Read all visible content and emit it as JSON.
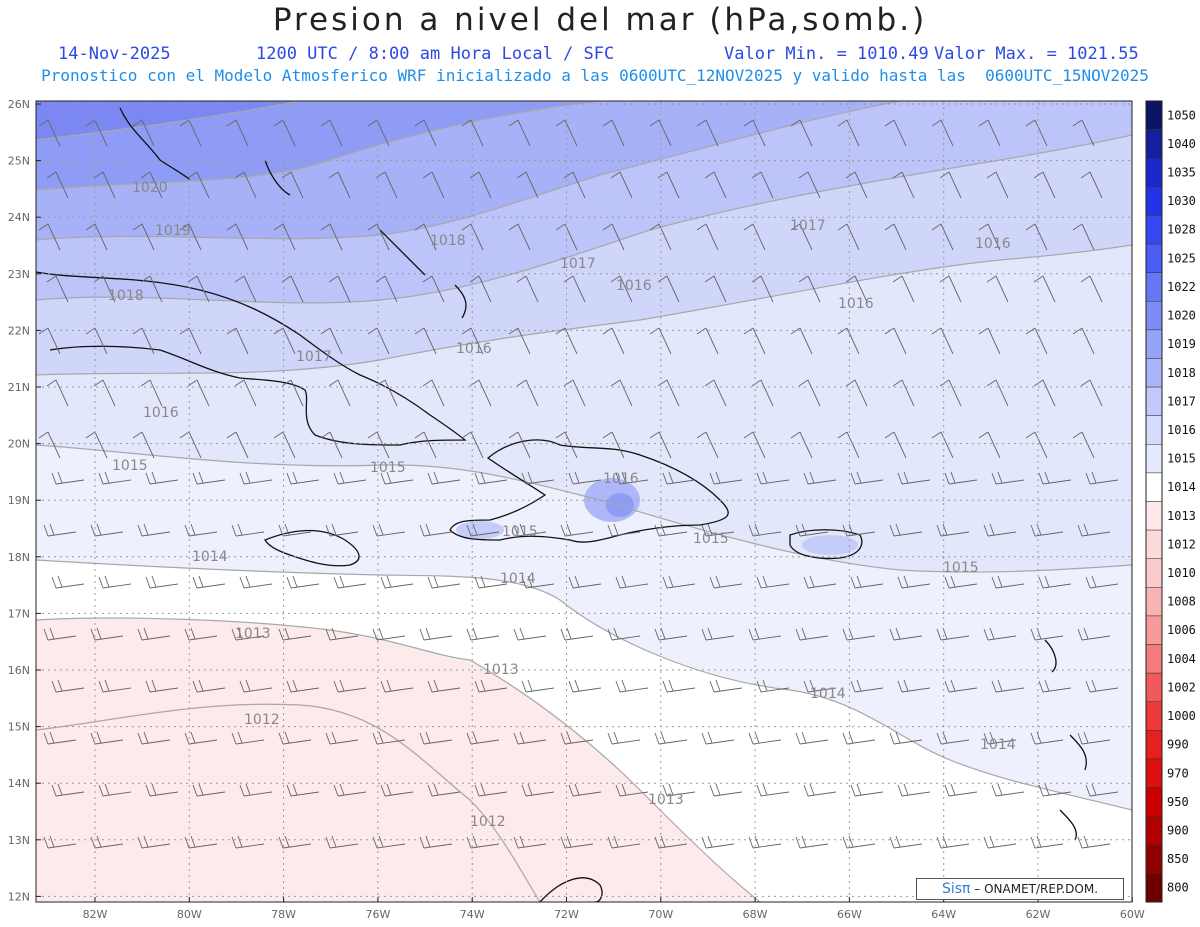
{
  "header": {
    "title": "Presion a nivel del mar (hPa,somb.)",
    "date": "14-Nov-2025",
    "time_info": "1200 UTC / 8:00 am Hora Local / SFC",
    "valor_min": "Valor Min. = 1010.49",
    "valor_max": "Valor Max. = 1021.55",
    "forecast_info": "Pronostico con el Modelo Atmosferico WRF inicializado a las 0600UTC_12NOV2025 y valido hasta las  0600UTC_15NOV2025"
  },
  "axes": {
    "lat_labels": [
      "26N",
      "25N",
      "24N",
      "23N",
      "22N",
      "21N",
      "20N",
      "19N",
      "18N",
      "17N",
      "16N",
      "15N",
      "14N",
      "13N",
      "12N"
    ],
    "lon_labels": [
      "82W",
      "80W",
      "78W",
      "76W",
      "74W",
      "72W",
      "70W",
      "68W",
      "66W",
      "64W",
      "62W",
      "60W"
    ]
  },
  "colorbar": {
    "levels": [
      "1050",
      "1040",
      "1035",
      "1030",
      "1028",
      "1025",
      "1022",
      "1020",
      "1019",
      "1018",
      "1017",
      "1016",
      "1015",
      "1014",
      "1013",
      "1012",
      "1010",
      "1008",
      "1006",
      "1004",
      "1002",
      "1000",
      "990",
      "970",
      "950",
      "900",
      "850",
      "800"
    ],
    "colors": [
      "#0d1466",
      "#141f9e",
      "#1a27cc",
      "#2133e6",
      "#3447f0",
      "#4a5cf2",
      "#6577f4",
      "#7d8df5",
      "#95a3f7",
      "#aab6f9",
      "#c0c9fa",
      "#d4dbfb",
      "#e6eafd",
      "#ffffff",
      "#fde9e9",
      "#fcdada",
      "#fbcaca",
      "#f9b3b3",
      "#f69999",
      "#f37b7b",
      "#f05a5a",
      "#ec3a3a",
      "#e61f1f",
      "#df0f0f",
      "#cc0000",
      "#b00000",
      "#900000",
      "#6e0000"
    ]
  },
  "isobar_labels": [
    "1020",
    "1019",
    "1018",
    "1018",
    "1017",
    "1017",
    "1016",
    "1016",
    "1016",
    "1016",
    "1016",
    "1017",
    "1015",
    "1015",
    "1016",
    "1015",
    "1015",
    "1015",
    "1014",
    "1014",
    "1013",
    "1013",
    "1013",
    "1012",
    "1012",
    "1014",
    "1014"
  ],
  "credit": {
    "logo": "Sisπ",
    "text": "– ONAMET/REP.DOM."
  }
}
